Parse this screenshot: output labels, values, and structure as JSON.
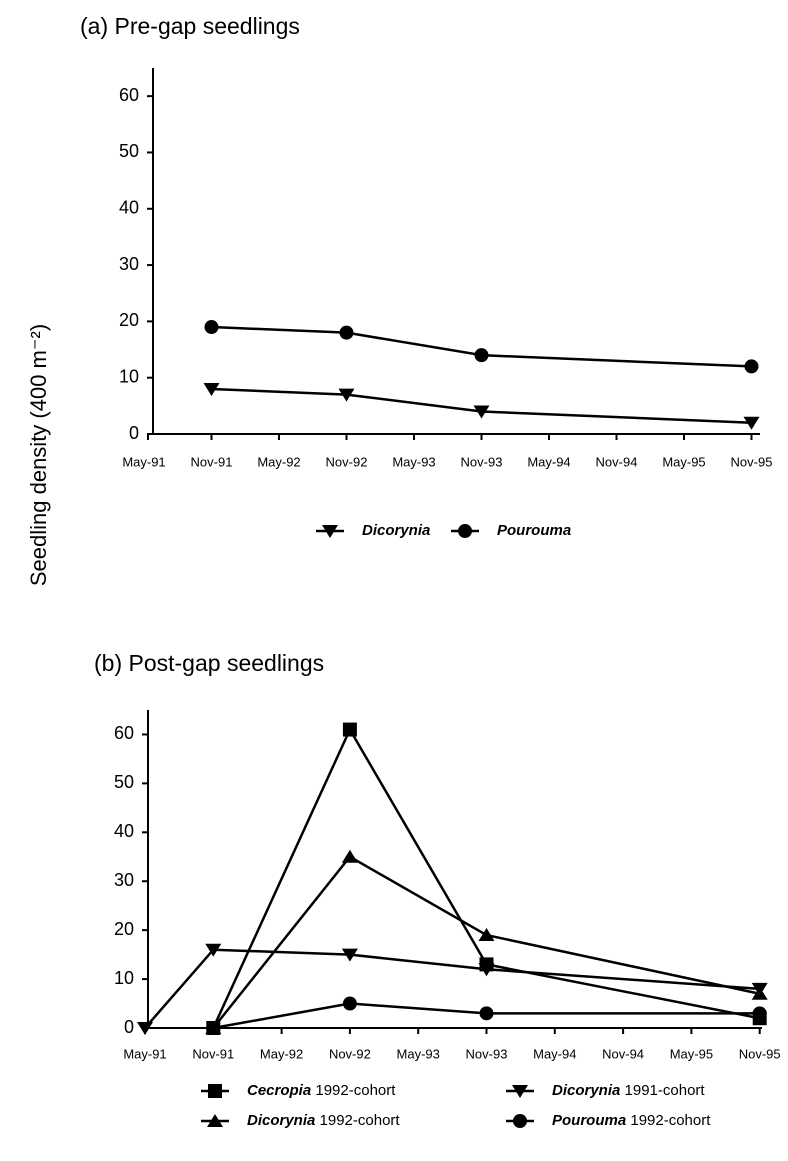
{
  "chart_data": [
    {
      "type": "line",
      "title": "(a) Pre-gap seedlings",
      "ylabel": "Seedling density (400 m⁻²)",
      "categories": [
        "May-91",
        "Nov-91",
        "May-92",
        "Nov-92",
        "May-93",
        "Nov-93",
        "May-94",
        "Nov-94",
        "May-95",
        "Nov-95"
      ],
      "ylim": [
        0,
        65
      ],
      "yticks": [
        0,
        10,
        20,
        30,
        40,
        50,
        60
      ],
      "series": [
        {
          "name": "Dicorynia",
          "color": "#000000",
          "marker": "triangle-down",
          "x": [
            "Nov-91",
            "Nov-92",
            "Nov-93",
            "Nov-95"
          ],
          "values": [
            8,
            7,
            4,
            2
          ]
        },
        {
          "name": "Pourouma",
          "color": "#000000",
          "marker": "circle",
          "x": [
            "Nov-91",
            "Nov-92",
            "Nov-93",
            "Nov-95"
          ],
          "values": [
            19,
            18,
            14,
            12
          ]
        }
      ]
    },
    {
      "type": "line",
      "title": "(b) Post-gap seedlings",
      "categories": [
        "May-91",
        "Nov-91",
        "May-92",
        "Nov-92",
        "May-93",
        "Nov-93",
        "May-94",
        "Nov-94",
        "May-95",
        "Nov-95"
      ],
      "ylim": [
        0,
        65
      ],
      "yticks": [
        0,
        10,
        20,
        30,
        40,
        50,
        60
      ],
      "series": [
        {
          "name": "Cecropia 1992-cohort",
          "color": "#000000",
          "marker": "square",
          "x": [
            "Nov-91",
            "Nov-92",
            "Nov-93",
            "Nov-95"
          ],
          "values": [
            0,
            61,
            13,
            2
          ]
        },
        {
          "name": "Dicorynia 1991-cohort",
          "color": "#000000",
          "marker": "triangle-down",
          "x": [
            "May-91",
            "Nov-91",
            "Nov-92",
            "Nov-93",
            "Nov-95"
          ],
          "values": [
            0,
            16,
            15,
            12,
            8
          ]
        },
        {
          "name": "Dicorynia 1992-cohort",
          "color": "#000000",
          "marker": "triangle-up",
          "x": [
            "Nov-91",
            "Nov-92",
            "Nov-93",
            "Nov-95"
          ],
          "values": [
            0,
            35,
            19,
            7
          ]
        },
        {
          "name": "Pourouma 1992-cohort",
          "color": "#000000",
          "marker": "circle",
          "x": [
            "Nov-91",
            "Nov-92",
            "Nov-93",
            "Nov-95"
          ],
          "values": [
            0,
            5,
            3,
            3
          ]
        }
      ]
    }
  ]
}
